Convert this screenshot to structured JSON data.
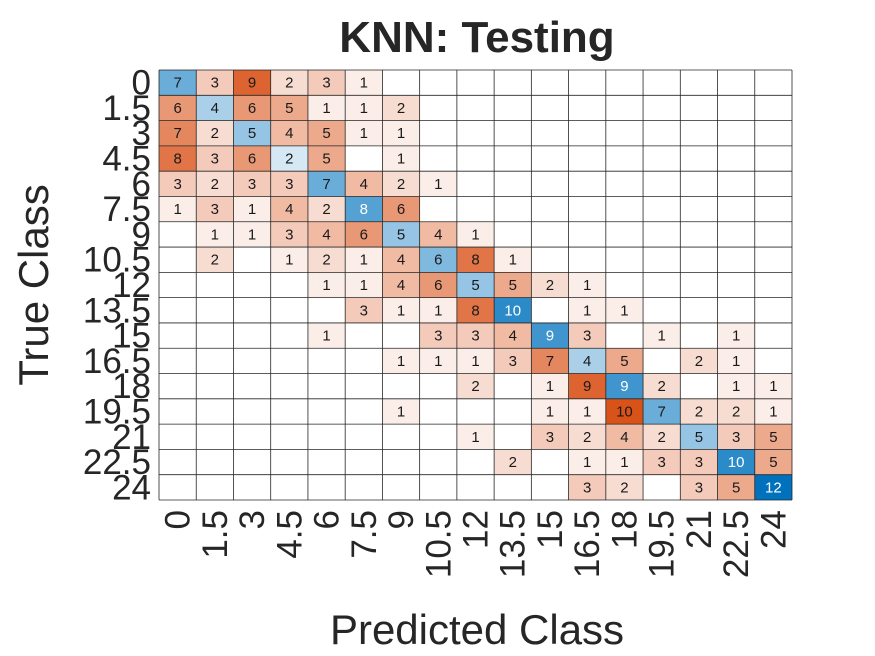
{
  "chart_data": {
    "type": "heatmap",
    "title": "KNN: Testing",
    "xlabel": "Predicted Class",
    "ylabel": "True Class",
    "classes": [
      "0",
      "1.5",
      "3",
      "4.5",
      "6",
      "7.5",
      "9",
      "10.5",
      "12",
      "13.5",
      "15",
      "16.5",
      "18",
      "19.5",
      "21",
      "22.5",
      "24"
    ],
    "matrix": [
      [
        7,
        3,
        9,
        2,
        3,
        1,
        0,
        0,
        0,
        0,
        0,
        0,
        0,
        0,
        0,
        0,
        0
      ],
      [
        6,
        4,
        6,
        5,
        1,
        1,
        2,
        0,
        0,
        0,
        0,
        0,
        0,
        0,
        0,
        0,
        0
      ],
      [
        7,
        2,
        5,
        4,
        5,
        1,
        1,
        0,
        0,
        0,
        0,
        0,
        0,
        0,
        0,
        0,
        0
      ],
      [
        8,
        3,
        6,
        2,
        5,
        0,
        1,
        0,
        0,
        0,
        0,
        0,
        0,
        0,
        0,
        0,
        0
      ],
      [
        3,
        2,
        3,
        3,
        7,
        4,
        2,
        1,
        0,
        0,
        0,
        0,
        0,
        0,
        0,
        0,
        0
      ],
      [
        1,
        3,
        1,
        4,
        2,
        8,
        6,
        0,
        0,
        0,
        0,
        0,
        0,
        0,
        0,
        0,
        0
      ],
      [
        0,
        1,
        1,
        3,
        4,
        6,
        5,
        4,
        1,
        0,
        0,
        0,
        0,
        0,
        0,
        0,
        0
      ],
      [
        0,
        2,
        0,
        1,
        2,
        1,
        4,
        6,
        8,
        1,
        0,
        0,
        0,
        0,
        0,
        0,
        0
      ],
      [
        0,
        0,
        0,
        0,
        1,
        1,
        4,
        6,
        5,
        5,
        2,
        1,
        0,
        0,
        0,
        0,
        0
      ],
      [
        0,
        0,
        0,
        0,
        0,
        3,
        1,
        1,
        8,
        10,
        0,
        1,
        1,
        0,
        0,
        0,
        0
      ],
      [
        0,
        0,
        0,
        0,
        1,
        0,
        0,
        3,
        3,
        4,
        9,
        3,
        0,
        1,
        0,
        1,
        0
      ],
      [
        0,
        0,
        0,
        0,
        0,
        0,
        1,
        1,
        1,
        3,
        7,
        4,
        5,
        0,
        2,
        1,
        0
      ],
      [
        0,
        0,
        0,
        0,
        0,
        0,
        0,
        0,
        2,
        0,
        1,
        9,
        9,
        2,
        0,
        1,
        1
      ],
      [
        0,
        0,
        0,
        0,
        0,
        0,
        1,
        0,
        0,
        0,
        1,
        1,
        10,
        7,
        2,
        2,
        1
      ],
      [
        0,
        0,
        0,
        0,
        0,
        0,
        0,
        0,
        1,
        0,
        3,
        2,
        4,
        2,
        5,
        3,
        5
      ],
      [
        0,
        0,
        0,
        0,
        0,
        0,
        0,
        0,
        0,
        2,
        0,
        1,
        1,
        3,
        3,
        10,
        5
      ],
      [
        0,
        0,
        0,
        0,
        0,
        0,
        0,
        0,
        0,
        0,
        0,
        3,
        2,
        0,
        3,
        5,
        12
      ]
    ],
    "zero_cells_shown": "blank",
    "diagonal_color": "#0072bd",
    "off_diagonal_color": "#d95319",
    "grid": true
  }
}
